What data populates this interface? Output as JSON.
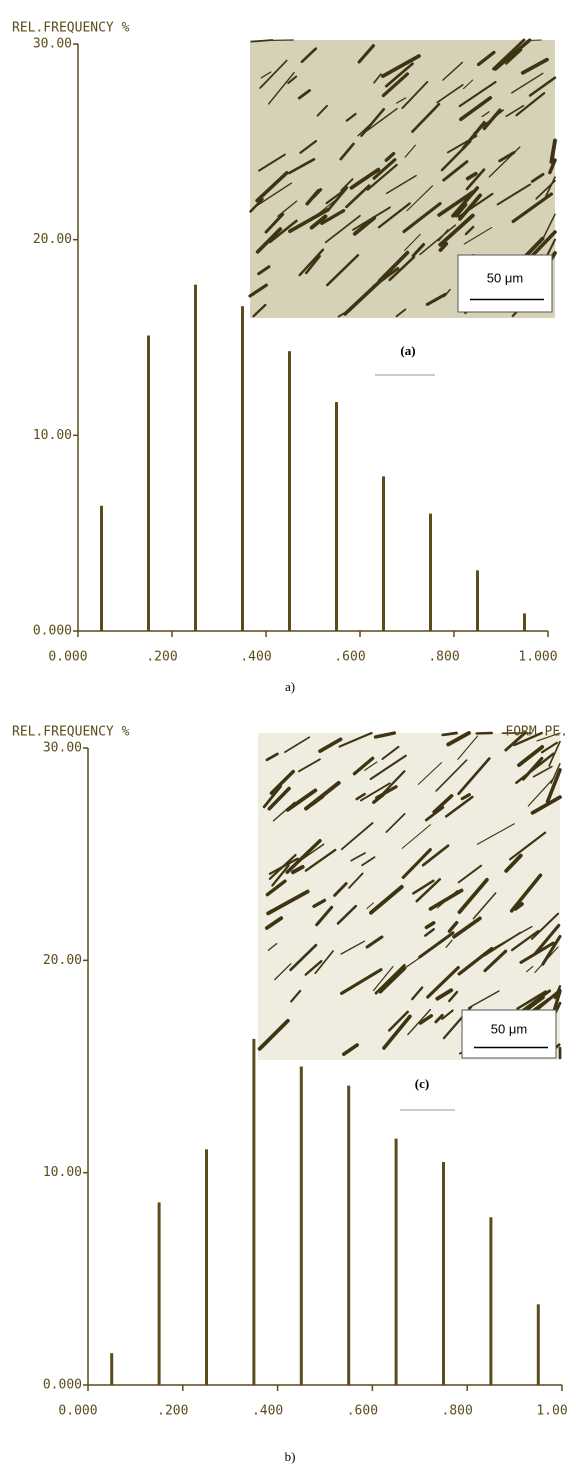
{
  "chart_data": [
    {
      "type": "bar",
      "ylabel": "REL.FREQUENCY %",
      "x": [
        0.05,
        0.15,
        0.25,
        0.35,
        0.45,
        0.55,
        0.65,
        0.75,
        0.85,
        0.95
      ],
      "values": [
        6.4,
        15.1,
        17.7,
        16.6,
        14.3,
        11.7,
        7.9,
        6.0,
        3.1,
        0.9
      ],
      "color": "#5c4c1c",
      "xlim": [
        0,
        1
      ],
      "xticks": [
        {
          "value": 0,
          "label": "0.000"
        },
        {
          "value": 0.2,
          "label": ".200"
        },
        {
          "value": 0.4,
          "label": ".400"
        },
        {
          "value": 0.6,
          "label": ".600"
        },
        {
          "value": 0.8,
          "label": ".800"
        },
        {
          "value": 1,
          "label": "1.000"
        }
      ],
      "ylim": [
        0,
        30
      ],
      "yticks": [
        {
          "value": 0,
          "label": "0.000"
        },
        {
          "value": 10,
          "label": "10.00"
        },
        {
          "value": 20,
          "label": "20.00"
        },
        {
          "value": 30,
          "label": "30.00"
        }
      ],
      "scale_bar": "50 μm",
      "panel_label": "(a)",
      "caption": "a)"
    },
    {
      "type": "bar",
      "ylabel": "REL.FREQUENCY %",
      "corner_label": "FORM PE.",
      "x": [
        0.05,
        0.15,
        0.25,
        0.35,
        0.45,
        0.55,
        0.65,
        0.75,
        0.85,
        0.95
      ],
      "values": [
        1.5,
        8.6,
        11.1,
        16.3,
        15.0,
        14.1,
        11.6,
        10.5,
        7.9,
        3.8
      ],
      "color": "#5c4c1c",
      "xlim": [
        0,
        1
      ],
      "xticks": [
        {
          "value": 0,
          "label": "0.000"
        },
        {
          "value": 0.2,
          "label": ".200"
        },
        {
          "value": 0.4,
          "label": ".400"
        },
        {
          "value": 0.6,
          "label": ".600"
        },
        {
          "value": 0.8,
          "label": ".800"
        },
        {
          "value": 1,
          "label": "1.00"
        }
      ],
      "ylim": [
        0,
        30
      ],
      "yticks": [
        {
          "value": 0,
          "label": "0.000"
        },
        {
          "value": 10,
          "label": "10.00"
        },
        {
          "value": 20,
          "label": "20.00"
        },
        {
          "value": 30,
          "label": "30.00"
        }
      ],
      "scale_bar": "50 μm",
      "panel_label": "(c)",
      "caption": "b)"
    }
  ]
}
